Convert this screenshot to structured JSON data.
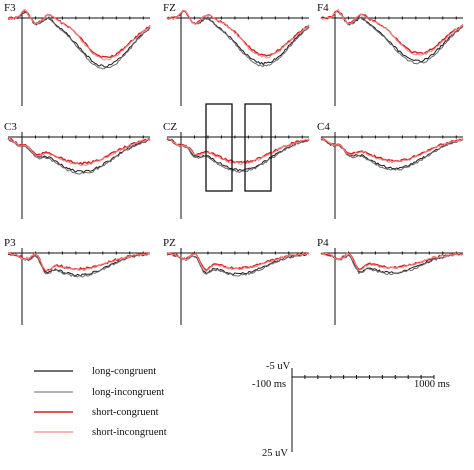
{
  "chart_data": {
    "type": "line",
    "title": "",
    "panels": [
      "F3",
      "FZ",
      "F4",
      "C3",
      "CZ",
      "C4",
      "P3",
      "PZ",
      "P4"
    ],
    "y_direction": "negative-up",
    "series": [
      {
        "name": "long-congruent",
        "color": "#1a1a1a"
      },
      {
        "name": "long-incongruent",
        "color": "#6a6a6a"
      },
      {
        "name": "short-congruent",
        "color": "#d62020"
      },
      {
        "name": "short-incongruent",
        "color": "#f08a8a"
      }
    ],
    "scale_bar": {
      "y_top": "-5 uV",
      "y_bottom": "25 uV",
      "x_start": "-100 ms",
      "x_end": "1000 ms",
      "xlim": [
        -100,
        1000
      ],
      "ylim": [
        -5,
        25
      ]
    },
    "highlight_windows_panel": "CZ"
  }
}
